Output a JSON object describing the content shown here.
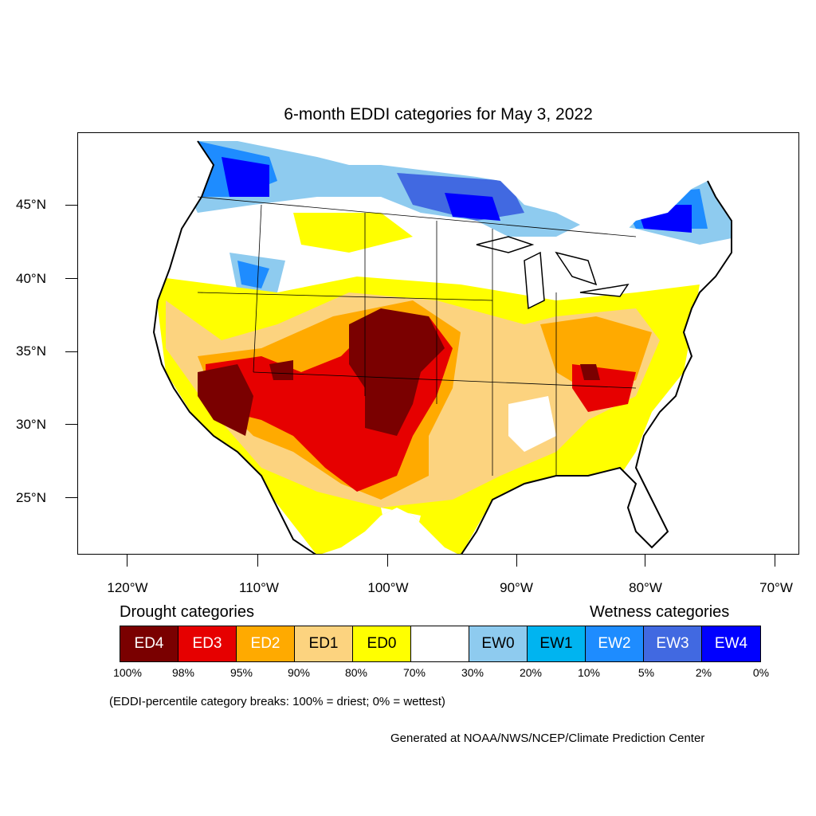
{
  "title": "6-month EDDI categories for May 3, 2022",
  "lat_labels": [
    "45°N",
    "40°N",
    "35°N",
    "30°N",
    "25°N"
  ],
  "lon_labels": [
    "120°W",
    "110°W",
    "100°W",
    "90°W",
    "80°W",
    "70°W"
  ],
  "legend": {
    "drought_heading": "Drought categories",
    "wetness_heading": "Wetness categories",
    "categories": [
      {
        "label": "ED4",
        "color": "#7a0000",
        "text_color": "#ffffff"
      },
      {
        "label": "ED3",
        "color": "#e60000",
        "text_color": "#ffffff"
      },
      {
        "label": "ED2",
        "color": "#ffaa00",
        "text_color": "#ffffff"
      },
      {
        "label": "ED1",
        "color": "#fcd37f",
        "text_color": "#000000"
      },
      {
        "label": "ED0",
        "color": "#ffff00",
        "text_color": "#000000"
      },
      {
        "label": "",
        "color": "#ffffff",
        "text_color": "#000000"
      },
      {
        "label": "EW0",
        "color": "#8ecbef",
        "text_color": "#000000"
      },
      {
        "label": "EW1",
        "color": "#00b4f0",
        "text_color": "#000000"
      },
      {
        "label": "EW2",
        "color": "#1e8cff",
        "text_color": "#ffffff"
      },
      {
        "label": "EW3",
        "color": "#4169e1",
        "text_color": "#ffffff"
      },
      {
        "label": "EW4",
        "color": "#0000ff",
        "text_color": "#ffffff"
      }
    ],
    "percentiles": [
      "100%",
      "98%",
      "95%",
      "90%",
      "80%",
      "70%",
      "30%",
      "20%",
      "10%",
      "5%",
      "2%",
      "0%"
    ]
  },
  "note": "(EDDI-percentile category breaks: 100% = driest; 0% = wettest)",
  "credit": "Generated at NOAA/NWS/NCEP/Climate Prediction Center"
}
